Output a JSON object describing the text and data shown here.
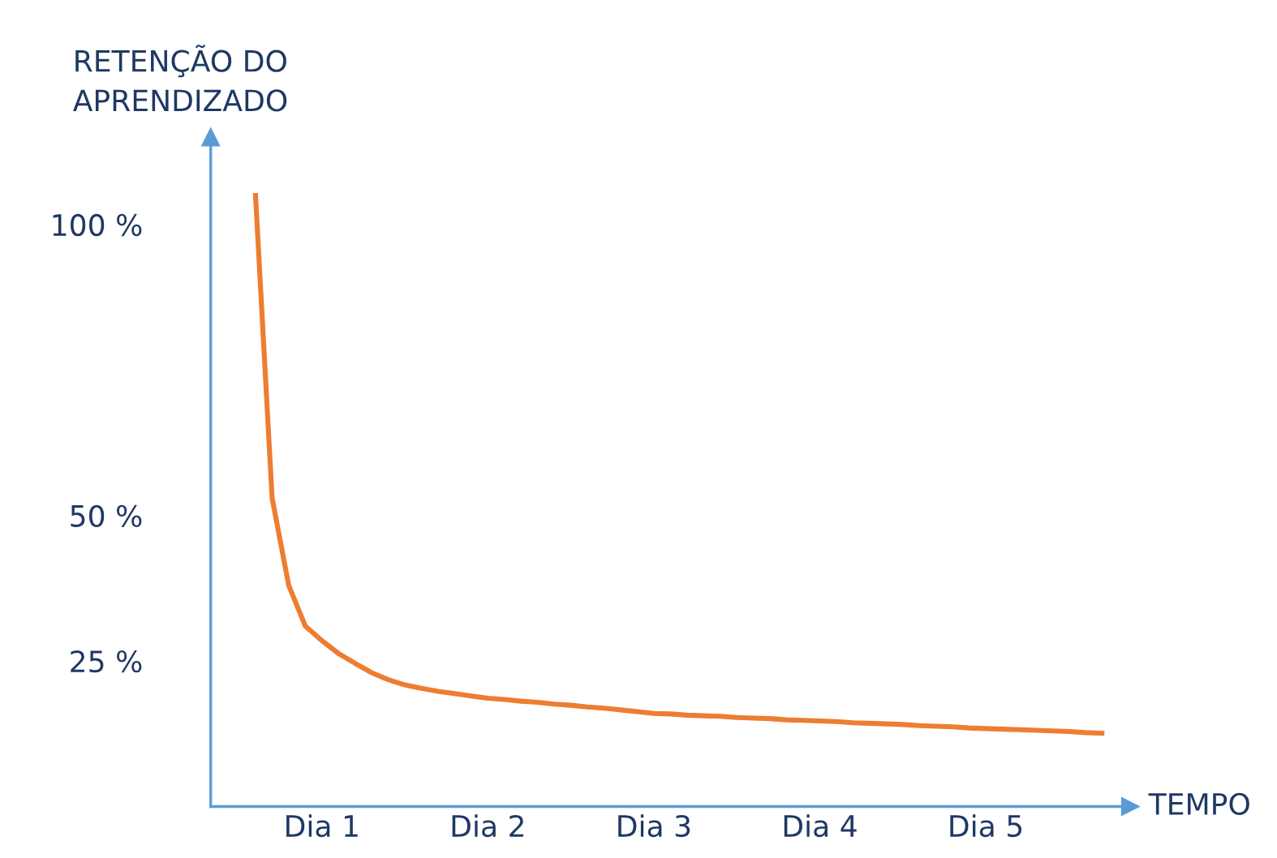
{
  "chart_data": {
    "type": "line",
    "ylabel": "RETENÇÃO DO\nAPRENDIZADO",
    "xlabel": "TEMPO",
    "categories": [
      null,
      null,
      null,
      null,
      "Dia 1",
      null,
      null,
      null,
      null,
      null,
      null,
      null,
      null,
      null,
      "Dia 2",
      null,
      null,
      null,
      null,
      null,
      null,
      null,
      null,
      null,
      "Dia 3",
      null,
      null,
      null,
      null,
      null,
      null,
      null,
      null,
      null,
      "Dia 4",
      null,
      null,
      null,
      null,
      null,
      null,
      null,
      null,
      null,
      "Dia 5",
      null,
      null,
      null,
      null,
      null,
      null,
      null
    ],
    "series": [
      {
        "color": "#ed7d31",
        "values": [
          105,
          53,
          38,
          31,
          28.5,
          26.3,
          24.6,
          23,
          21.8,
          20.9,
          20.3,
          19.8,
          19.4,
          19.0,
          18.6,
          18.4,
          18.1,
          17.9,
          17.6,
          17.4,
          17.1,
          16.9,
          16.6,
          16.3,
          16.0,
          15.9,
          15.7,
          15.6,
          15.5,
          15.3,
          15.2,
          15.1,
          14.9,
          14.8,
          14.7,
          14.6,
          14.4,
          14.3,
          14.2,
          14.1,
          13.9,
          13.8,
          13.7,
          13.5,
          13.4,
          13.3,
          13.2,
          13.1,
          13.0,
          12.9,
          12.7,
          12.6
        ]
      }
    ],
    "ylim": [
      0,
      115
    ],
    "yticks": [
      {
        "value": 25,
        "label": "25 %"
      },
      {
        "value": 50,
        "label": "50 %"
      },
      {
        "value": 100,
        "label": "100 %"
      }
    ],
    "grid": false,
    "legend": false,
    "marker": "none",
    "line_style": "solid"
  }
}
